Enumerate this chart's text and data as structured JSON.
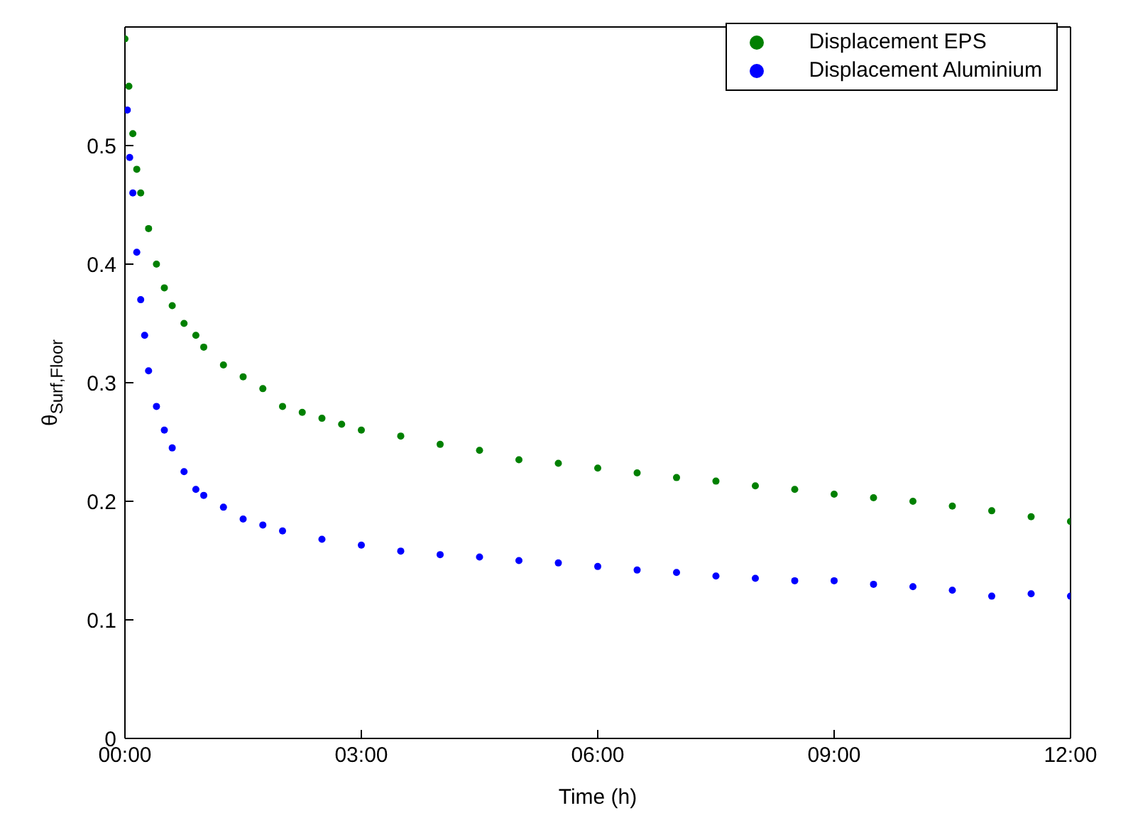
{
  "chart_data": {
    "type": "scatter",
    "xlabel": "Time (h)",
    "ylabel": "θ$_{Surf,Floor}$",
    "xlim": [
      0,
      12
    ],
    "xticks": [
      {
        "value": 0,
        "label": "00:00"
      },
      {
        "value": 3,
        "label": "03:00"
      },
      {
        "value": 6,
        "label": "06:00"
      },
      {
        "value": 9,
        "label": "09:00"
      },
      {
        "value": 12,
        "label": "12:00"
      }
    ],
    "ylim": [
      0,
      0.6
    ],
    "yticks": [
      0,
      0.1,
      0.2,
      0.3,
      0.4,
      0.5
    ],
    "grid": false,
    "legend": "top right",
    "marker": "circle",
    "series": [
      {
        "name": "Displacement EPS",
        "color": "#008000",
        "x": [
          0,
          0.05,
          0.1,
          0.15,
          0.2,
          0.3,
          0.4,
          0.5,
          0.6,
          0.75,
          0.9,
          1,
          1.25,
          1.5,
          1.75,
          2,
          2.25,
          2.5,
          2.75,
          3,
          3.5,
          4,
          4.5,
          5,
          5.5,
          6,
          6.5,
          7,
          7.5,
          8,
          8.5,
          9,
          9.5,
          10,
          10.5,
          11,
          11.5,
          12
        ],
        "values": [
          0.59,
          0.55,
          0.51,
          0.48,
          0.46,
          0.43,
          0.4,
          0.38,
          0.365,
          0.35,
          0.34,
          0.33,
          0.315,
          0.305,
          0.295,
          0.28,
          0.275,
          0.27,
          0.265,
          0.26,
          0.255,
          0.248,
          0.243,
          0.235,
          0.232,
          0.228,
          0.224,
          0.22,
          0.217,
          0.213,
          0.21,
          0.206,
          0.203,
          0.2,
          0.196,
          0.192,
          0.187,
          0.183
        ]
      },
      {
        "name": "Displacement Aluminium",
        "color": "#0000ff",
        "x": [
          0.03,
          0.06,
          0.1,
          0.15,
          0.2,
          0.25,
          0.3,
          0.4,
          0.5,
          0.6,
          0.75,
          0.9,
          1,
          1.25,
          1.5,
          1.75,
          2,
          2.5,
          3,
          3.5,
          4,
          4.5,
          5,
          5.5,
          6,
          6.5,
          7,
          7.5,
          8,
          8.5,
          9,
          9.5,
          10,
          10.5,
          11,
          11.5,
          12
        ],
        "values": [
          0.53,
          0.49,
          0.46,
          0.41,
          0.37,
          0.34,
          0.31,
          0.28,
          0.26,
          0.245,
          0.225,
          0.21,
          0.205,
          0.195,
          0.185,
          0.18,
          0.175,
          0.168,
          0.163,
          0.158,
          0.155,
          0.153,
          0.15,
          0.148,
          0.145,
          0.142,
          0.14,
          0.137,
          0.135,
          0.133,
          0.133,
          0.13,
          0.128,
          0.125,
          0.12,
          0.122,
          0.12
        ]
      }
    ]
  }
}
